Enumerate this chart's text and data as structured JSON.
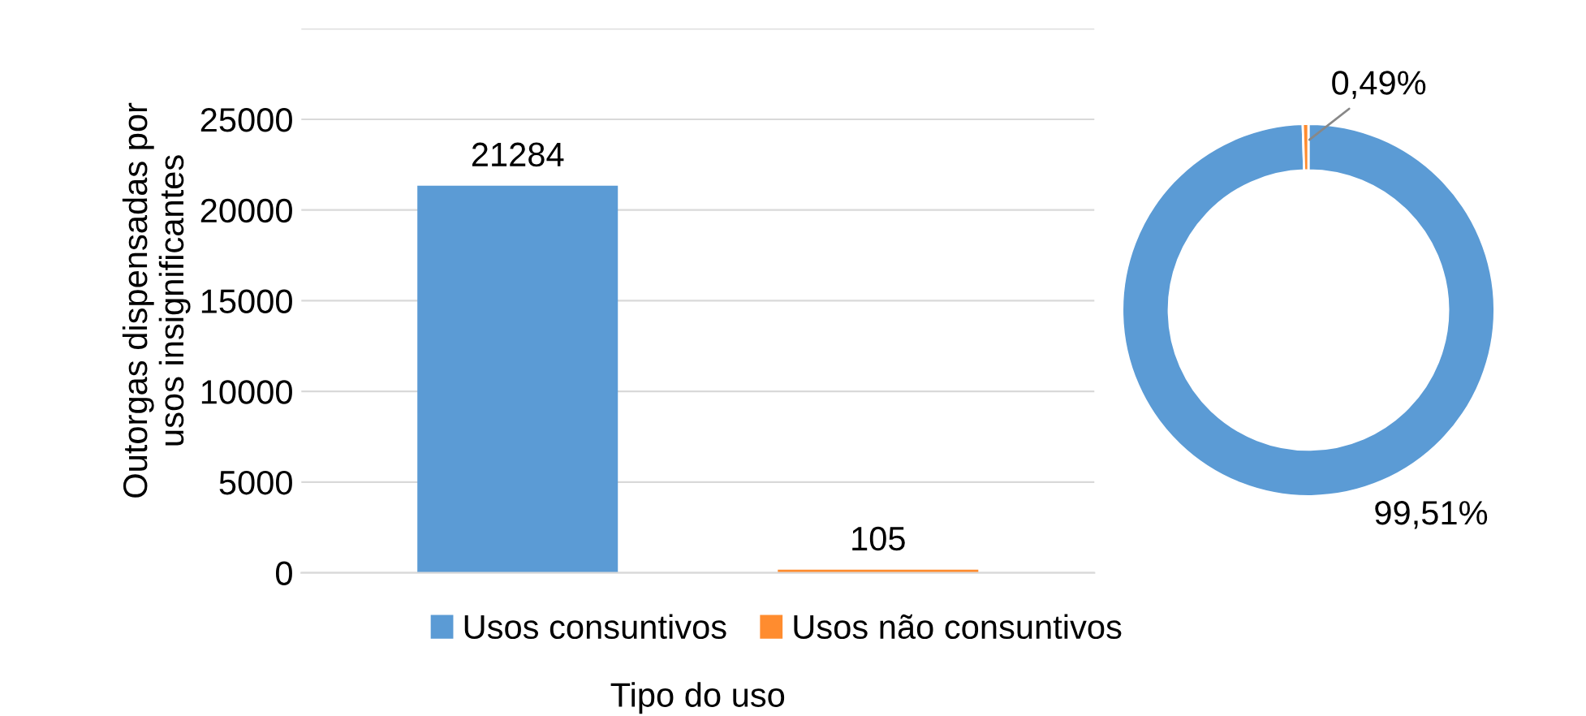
{
  "chart_data": [
    {
      "type": "bar",
      "ylabel": "Outorgas dispensadas por\nusos insignificantes",
      "xlabel": "Tipo do uso",
      "categories": [
        null,
        null
      ],
      "series": [
        {
          "name": "Usos consuntivos",
          "color": "#5b9bd5",
          "values": [
            21284,
            null
          ]
        },
        {
          "name": "Usos não consuntivos",
          "color": "#ff8c2f",
          "values": [
            null,
            105
          ]
        }
      ],
      "ylim": [
        0,
        30000
      ],
      "yticks": [
        0,
        5000,
        10000,
        15000,
        20000,
        25000,
        {
          "value": 30000,
          "label": null
        }
      ],
      "grid": "y",
      "data_labels": true,
      "legend": "bottom"
    },
    {
      "type": "donut",
      "categories": [
        null,
        null
      ],
      "values": [
        99.51,
        0.49
      ],
      "colors": [
        "#5b9bd5",
        "#ff8c2f"
      ],
      "value_labels": [
        "99,51%",
        "0,49%"
      ]
    }
  ]
}
